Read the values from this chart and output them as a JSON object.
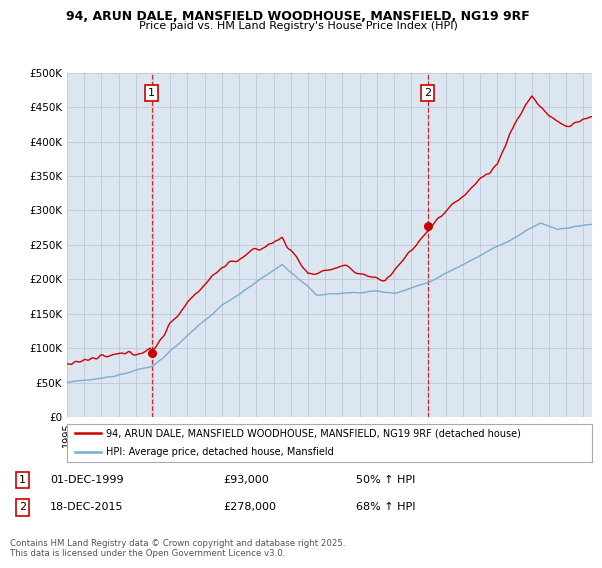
{
  "title_line1": "94, ARUN DALE, MANSFIELD WOODHOUSE, MANSFIELD, NG19 9RF",
  "title_line2": "Price paid vs. HM Land Registry's House Price Index (HPI)",
  "ylim": [
    0,
    500000
  ],
  "xlim_start": 1995.0,
  "xlim_end": 2025.5,
  "sale1_date": 1999.92,
  "sale1_price": 93000,
  "sale2_date": 2015.96,
  "sale2_price": 278000,
  "sale1_label": "1",
  "sale2_label": "2",
  "legend_line1": "94, ARUN DALE, MANSFIELD WOODHOUSE, MANSFIELD, NG19 9RF (detached house)",
  "legend_line2": "HPI: Average price, detached house, Mansfield",
  "footnote": "Contains HM Land Registry data © Crown copyright and database right 2025.\nThis data is licensed under the Open Government Licence v3.0.",
  "line_color_red": "#cc0000",
  "line_color_blue": "#7aadcf",
  "bg_color": "#dce6f1",
  "plot_bg": "#ffffff",
  "grid_color": "#c0c8d8",
  "dashed_color": "#cc0000"
}
